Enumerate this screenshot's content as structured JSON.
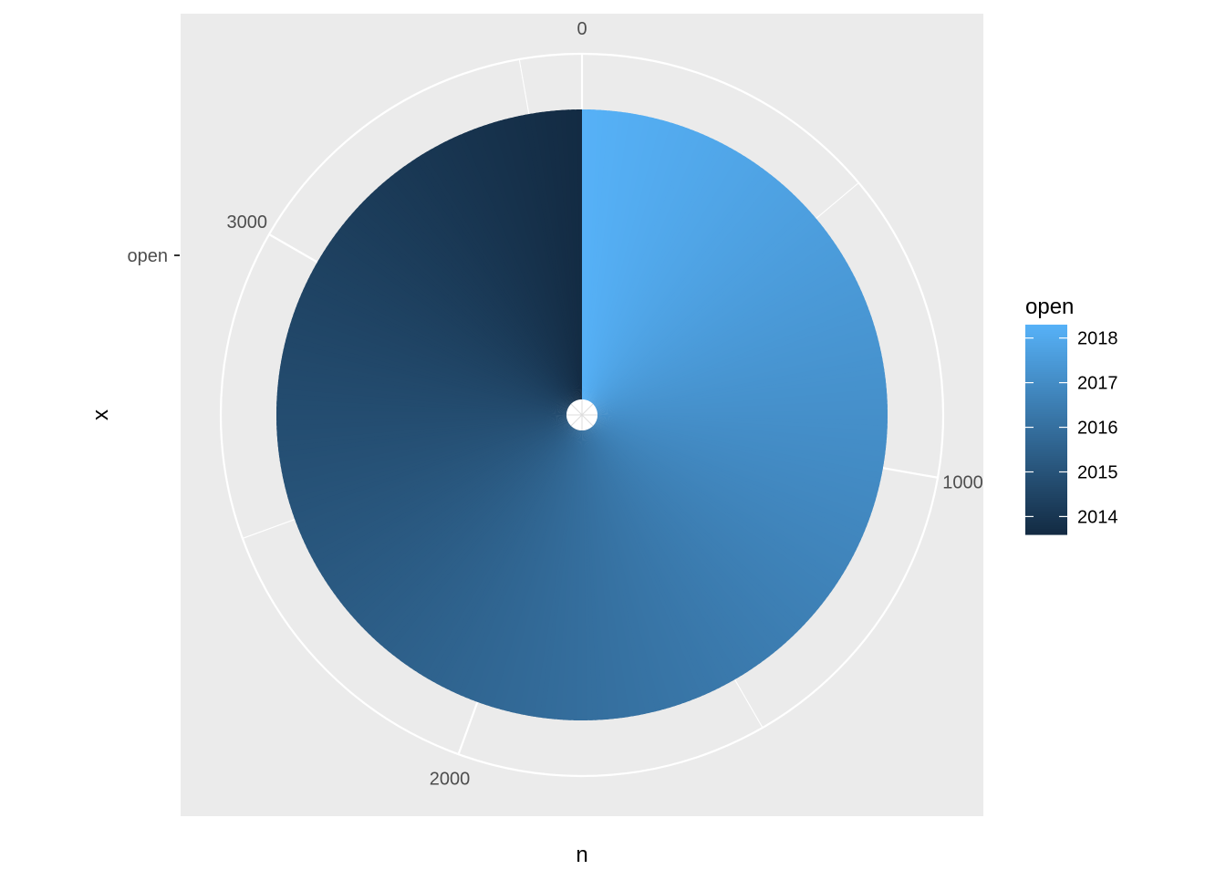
{
  "chart_data": {
    "type": "pie",
    "subtype": "polar-coordinates stacked bar (ggplot2 coord_polar)",
    "category": "open",
    "count_variable": "n",
    "total_n": 3600,
    "fill_variable": "open",
    "fill_type": "continuous",
    "fill_range": [
      2013.6,
      2018.3
    ],
    "fill_low_color": "#132B43",
    "fill_high_color": "#56B1F7",
    "panel_background": "#EBEBEB",
    "grid_color": "#FFFFFF",
    "theta_ticks": [
      "0",
      "1000",
      "2000",
      "3000"
    ],
    "theta_tick_values": [
      0,
      1000,
      2000,
      3000
    ],
    "r_axis_label": "open",
    "xlabel": "n",
    "ylabel": "x",
    "legend": {
      "title": "open",
      "position": "right",
      "labels": [
        "2018",
        "2017",
        "2016",
        "2015",
        "2014"
      ],
      "values": [
        2018,
        2017,
        2016,
        2015,
        2014
      ]
    }
  }
}
